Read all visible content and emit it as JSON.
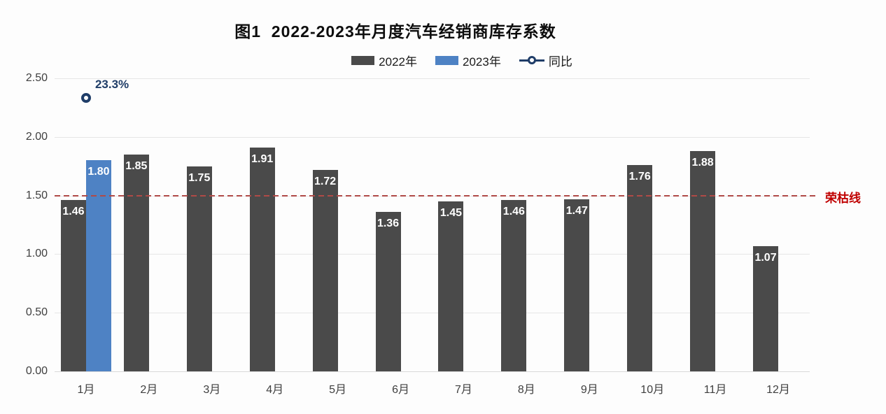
{
  "title": "图1  2022-2023年月度汽车经销商库存系数",
  "legend": {
    "items": [
      {
        "label": "2022年",
        "swatch": "bar",
        "color_key": "bar_2022"
      },
      {
        "label": "2023年",
        "swatch": "bar",
        "color_key": "bar_2023"
      },
      {
        "label": "同比",
        "swatch": "line-circle",
        "color_key": "yoy"
      }
    ]
  },
  "colors": {
    "bar_2022": "#4a4a4a",
    "bar_2023": "#4e82c4",
    "yoy": "#1f3d68",
    "reference_line": "#b04a47",
    "reference_label": "#c00000",
    "grid": "#e6e6e6",
    "baseline": "#d9d9d9",
    "axis_text": "#3f3f3f",
    "bar_label": "#ffffff",
    "title": "#0d0d0d"
  },
  "chart_data": {
    "type": "bar",
    "title": "图1 2022-2023年月度汽车经销商库存系数",
    "categories": [
      "1月",
      "2月",
      "3月",
      "4月",
      "5月",
      "6月",
      "7月",
      "8月",
      "9月",
      "10月",
      "11月",
      "12月"
    ],
    "series": [
      {
        "name": "2022年",
        "type": "bar",
        "values": [
          1.46,
          1.85,
          1.75,
          1.91,
          1.72,
          1.36,
          1.45,
          1.46,
          1.47,
          1.76,
          1.88,
          1.07
        ],
        "labels": [
          "1.46",
          "1.85",
          "1.75",
          "1.91",
          "1.72",
          "1.36",
          "1.45",
          "1.46",
          "1.47",
          "1.76",
          "1.88",
          "1.07"
        ]
      },
      {
        "name": "2023年",
        "type": "bar",
        "values": [
          1.8,
          null,
          null,
          null,
          null,
          null,
          null,
          null,
          null,
          null,
          null,
          null
        ],
        "labels": [
          "1.80",
          null,
          null,
          null,
          null,
          null,
          null,
          null,
          null,
          null,
          null,
          null
        ]
      },
      {
        "name": "同比",
        "type": "scatter",
        "points": [
          {
            "category": "1月",
            "label": "23.3%",
            "value_percent": 23.3,
            "left_axis_position": 2.33
          }
        ]
      }
    ],
    "xlabel": "",
    "ylabel": "",
    "ylim": [
      0,
      2.5
    ],
    "yticks": {
      "labels": [
        "0.00",
        "0.50",
        "1.00",
        "1.50",
        "2.00",
        "2.50"
      ],
      "values": [
        0,
        0.5,
        1,
        1.5,
        2,
        2.5
      ]
    },
    "grid": "horizontal",
    "legend_position": "top",
    "reference_line": {
      "value": 1.5,
      "label": "荣枯线",
      "style": "dashed"
    }
  }
}
